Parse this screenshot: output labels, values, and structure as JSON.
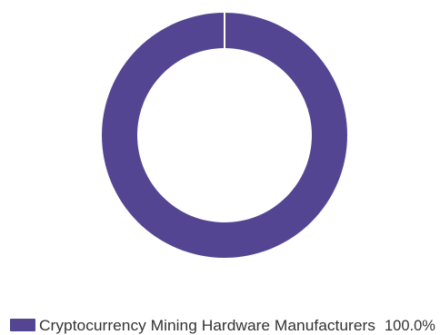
{
  "chart_data": {
    "type": "pie",
    "variant": "donut",
    "title": "",
    "slices": [
      {
        "label": "Cryptocurrency Mining Hardware Manufacturers",
        "value": 100.0,
        "percent_label": "100.0%",
        "color": "#544593"
      }
    ],
    "legend_position": "bottom-center"
  }
}
